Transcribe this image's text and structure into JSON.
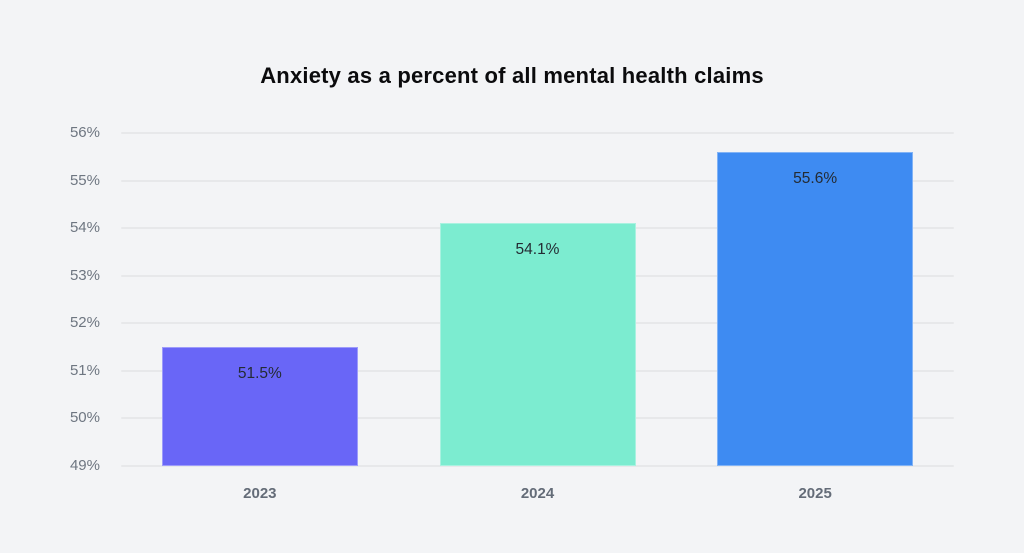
{
  "chart": {
    "title": "Anxiety as a percent of all mental health claims",
    "background_color": "#f3f4f6",
    "gridline_color": "#e7e8ea",
    "axis_label_color": "#6e7681",
    "value_label_color": "#242b33"
  },
  "chart_data": {
    "type": "bar",
    "title": "Anxiety as a percent of all mental health claims",
    "categories": [
      "2023",
      "2024",
      "2025"
    ],
    "values": [
      51.5,
      54.1,
      55.6
    ],
    "value_labels": [
      "51.5%",
      "54.1%",
      "55.6%"
    ],
    "bar_colors": [
      "#6966f7",
      "#7cecd0",
      "#3e8bf2"
    ],
    "xlabel": "",
    "ylabel": "",
    "ylim": [
      49,
      56
    ],
    "ytick_values": [
      49,
      50,
      51,
      52,
      53,
      54,
      55,
      56
    ],
    "ytick_labels": [
      "49%",
      "50%",
      "51%",
      "52%",
      "53%",
      "54%",
      "55%",
      "56%"
    ],
    "grid": true,
    "legend": false,
    "value_labels_position": "inside-top"
  }
}
